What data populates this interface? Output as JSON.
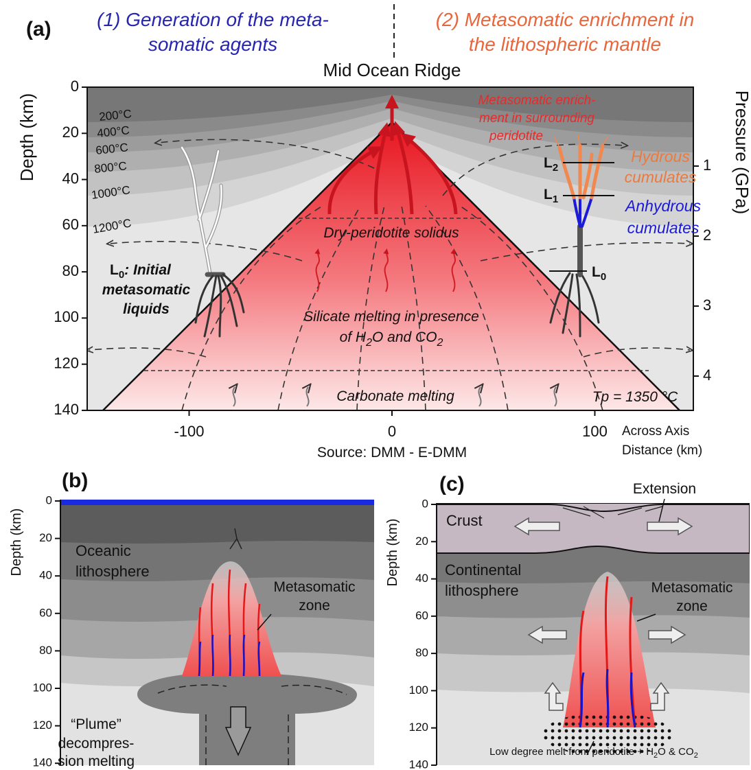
{
  "panel_a": {
    "label": "(a)",
    "header_left": [
      "(1) Generation of the meta-",
      "somatic agents"
    ],
    "header_right": [
      "(2) Metasomatic enrichment in",
      "the lithospheric mantle"
    ],
    "ridge_label": "Mid Ocean Ridge",
    "y_axis": {
      "label": "Depth (km)",
      "ticks": [
        0,
        20,
        40,
        60,
        80,
        100,
        120,
        140
      ]
    },
    "y2_axis": {
      "label": "Pressure (GPa)",
      "ticks": [
        1,
        2,
        3,
        4
      ]
    },
    "x_axis": {
      "ticks": [
        -100,
        0,
        100
      ],
      "label": [
        "Across Axis",
        "Distance (km)"
      ]
    },
    "source": "Source: DMM - E-DMM",
    "isotherms": [
      "200°C",
      "400°C",
      "600°C",
      "800°C",
      "1000°C",
      "1200°C"
    ],
    "enrichment_note": [
      "Metasomatic enrich-",
      "ment in surrounding",
      "peridotite"
    ],
    "hydrous": [
      "Hydrous",
      "cumulates"
    ],
    "anhydrous": [
      "Anhydrous",
      "cumulates"
    ],
    "levels": [
      {
        "letter": "L",
        "index": "2"
      },
      {
        "letter": "L",
        "index": "1"
      },
      {
        "letter": "L",
        "index": "0"
      }
    ],
    "initial_liquids": {
      "letter": "L",
      "index": "0",
      "rest": ": Initial",
      "lines": [
        "metasomatic",
        "liquids"
      ]
    },
    "solidus": "Dry-peridotite solidus",
    "silicate_melting": {
      "line1": "Silicate melting in presence",
      "line2": [
        "of H",
        "2",
        "O and CO",
        "2"
      ]
    },
    "carbonate_melting": "Carbonate melting",
    "potential_temperature": "Tp = 1350 °C"
  },
  "panel_b": {
    "label": "(b)",
    "y_axis": {
      "label": "Depth (km)",
      "ticks": [
        0,
        20,
        40,
        60,
        80,
        100,
        120,
        140
      ]
    },
    "lithosphere": [
      "Oceanic",
      "lithosphere"
    ],
    "zone": [
      "Metasomatic",
      "zone"
    ],
    "plume": [
      "“Plume”",
      "decompres-",
      "sion melting"
    ]
  },
  "panel_c": {
    "label": "(c)",
    "y_axis": {
      "label": "Depth (km)",
      "ticks": [
        0,
        20,
        40,
        60,
        80,
        100,
        120,
        140
      ]
    },
    "extension": "Extension",
    "crust": "Crust",
    "lithosphere": [
      "Continental",
      "lithosphere"
    ],
    "zone": [
      "Metasomatic",
      "zone"
    ],
    "melt_note": [
      "Low degree melt from peridotite + H",
      "2",
      "O & CO",
      "2"
    ]
  }
}
